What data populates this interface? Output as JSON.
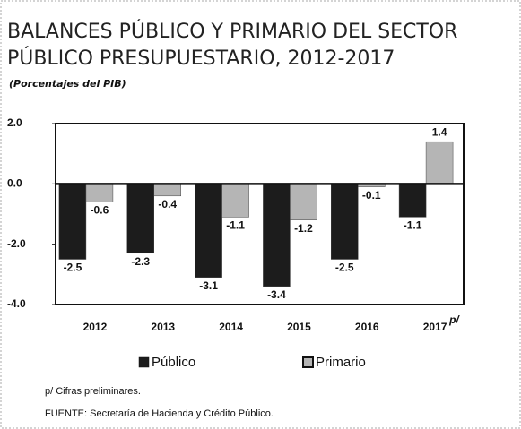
{
  "chart_data": {
    "type": "bar",
    "title": [
      "BALANCES PÚBLICO Y PRIMARIO DEL SECTOR",
      "PÚBLICO PRESUPUESTARIO, 2012-2017"
    ],
    "subtitle": "(Porcentajes del PIB)",
    "categories": [
      "2012",
      "2013",
      "2014",
      "2015",
      "2016",
      "2017"
    ],
    "superscript": "p/",
    "series": [
      {
        "name": "Público",
        "color": "#1c1c1c",
        "values": [
          -2.5,
          -2.3,
          -3.1,
          -3.4,
          -2.5,
          -1.1
        ]
      },
      {
        "name": "Primario",
        "color": "#b5b5b5",
        "values": [
          -0.6,
          -0.4,
          -1.1,
          -1.2,
          -0.1,
          1.4
        ]
      }
    ],
    "ylim": [
      -4,
      2
    ],
    "yticks": [
      {
        "value": 2,
        "label": "2.0"
      },
      {
        "value": 0,
        "label": "0.0"
      },
      {
        "value": -2,
        "label": "-2.0"
      },
      {
        "value": -4,
        "label": "-4.0"
      }
    ],
    "notes": [
      "p/ Cifras preliminares.",
      "FUENTE: Secretaría de Hacienda y Crédito Público."
    ]
  }
}
